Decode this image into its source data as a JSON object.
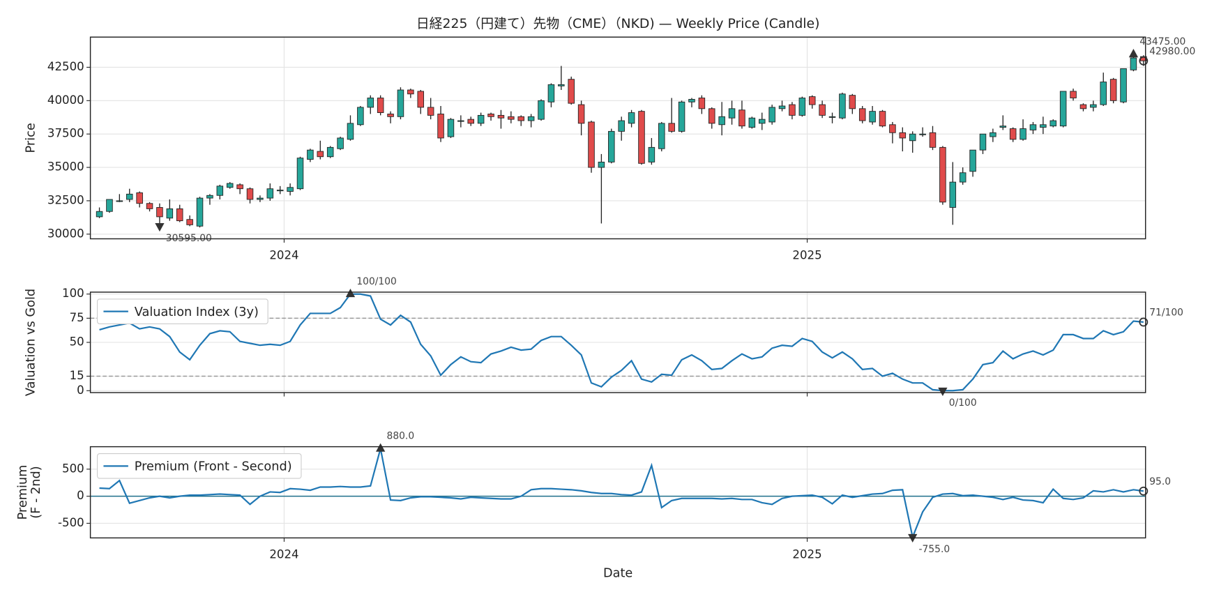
{
  "chart_data": [
    {
      "type": "candlestick",
      "title": "日経225（円建て）先物（CME）（NKD) — Weekly Price (Candle)",
      "ylabel": "Price",
      "xlim": [
        -0.9,
        104.2
      ],
      "xticks": [
        {
          "value": 18.4,
          "label": "2024"
        },
        {
          "value": 70.5,
          "label": "2025"
        }
      ],
      "ylim": [
        29650,
        44760
      ],
      "yticks": [
        30000,
        32500,
        35000,
        37500,
        40000,
        42500
      ],
      "grid": true,
      "up_color": "#26a69a",
      "down_color": "#e04b4b",
      "open": [
        31300,
        31700,
        32500,
        32600,
        33100,
        32300,
        32000,
        31200,
        31900,
        31100,
        30600,
        32700,
        32900,
        33500,
        33700,
        33400,
        32600,
        32700,
        33300,
        33200,
        33400,
        35600,
        36200,
        35800,
        36400,
        37100,
        38200,
        39500,
        40200,
        39000,
        38800,
        40800,
        40700,
        39500,
        39000,
        37300,
        38500,
        38600,
        38300,
        39000,
        38900,
        38800,
        38800,
        38500,
        38600,
        39900,
        41100,
        41600,
        39700,
        38400,
        35000,
        35400,
        37700,
        38300,
        39200,
        35400,
        36400,
        38300,
        37700,
        39900,
        40200,
        39400,
        38200,
        38700,
        39300,
        38000,
        38300,
        38400,
        39400,
        39700,
        38900,
        40300,
        39700,
        38800,
        38700,
        40400,
        39400,
        38400,
        39200,
        38200,
        37600,
        37000,
        37500,
        37600,
        36500,
        32000,
        33900,
        34700,
        36300,
        37300,
        38000,
        37900,
        37100,
        37800,
        38000,
        38100,
        38100,
        40700,
        39700,
        39500,
        39700,
        41600,
        39900,
        42300,
        43300
      ],
      "high": [
        32000,
        32600,
        33000,
        33400,
        33200,
        32400,
        32300,
        32600,
        32200,
        31400,
        32800,
        33000,
        33700,
        33900,
        33800,
        33500,
        32900,
        33800,
        33600,
        33800,
        35800,
        36400,
        37000,
        36600,
        37300,
        38900,
        39600,
        40400,
        40400,
        39200,
        41000,
        40900,
        40800,
        40200,
        39600,
        38700,
        38900,
        38800,
        39100,
        39100,
        39300,
        39200,
        38900,
        39000,
        40100,
        41300,
        42600,
        41800,
        40000,
        38500,
        36000,
        37900,
        38800,
        39300,
        39300,
        37200,
        38400,
        40200,
        40000,
        40200,
        40400,
        39500,
        39900,
        40000,
        40000,
        38800,
        39100,
        39700,
        40000,
        39900,
        40300,
        40400,
        40000,
        39100,
        40600,
        40500,
        39600,
        39600,
        39300,
        38400,
        38000,
        37700,
        38000,
        38100,
        36600,
        35400,
        35000,
        36300,
        37500,
        37900,
        38900,
        38000,
        38600,
        38400,
        38800,
        38600,
        40700,
        40900,
        39800,
        40000,
        42100,
        41700,
        42400,
        43475,
        43400
      ],
      "low": [
        31200,
        31600,
        32400,
        32400,
        32000,
        31700,
        30300,
        31000,
        30900,
        30595,
        30500,
        32200,
        32600,
        33400,
        33000,
        32300,
        32400,
        32500,
        33000,
        32900,
        33300,
        35400,
        35600,
        35700,
        36300,
        37000,
        38100,
        39000,
        38900,
        38300,
        38600,
        40200,
        39000,
        38600,
        36900,
        37200,
        38000,
        38100,
        38100,
        38500,
        37900,
        38300,
        38100,
        38000,
        38500,
        39500,
        40800,
        39700,
        37400,
        34600,
        30800,
        35300,
        37000,
        38000,
        35200,
        35200,
        36200,
        37600,
        37600,
        39500,
        39000,
        37900,
        37400,
        38200,
        37900,
        37900,
        37800,
        38200,
        39200,
        38600,
        38800,
        39400,
        38700,
        38300,
        38600,
        39000,
        38300,
        38200,
        38000,
        36800,
        36200,
        36100,
        37300,
        36300,
        32200,
        30700,
        33700,
        34300,
        36000,
        36900,
        37800,
        36900,
        37000,
        37500,
        37500,
        38000,
        38000,
        40000,
        39200,
        39200,
        39600,
        39800,
        39800,
        42200,
        42600
      ],
      "close": [
        31700,
        32600,
        32500,
        33000,
        32300,
        31900,
        31300,
        31900,
        31000,
        30700,
        32700,
        32900,
        33600,
        33800,
        33400,
        32600,
        32700,
        33400,
        33300,
        33500,
        35700,
        36300,
        35800,
        36500,
        37200,
        38300,
        39500,
        40200,
        39100,
        38800,
        40800,
        40500,
        39500,
        38900,
        37200,
        38600,
        38500,
        38300,
        38900,
        38800,
        38700,
        38600,
        38500,
        38800,
        40000,
        41200,
        41200,
        39800,
        38300,
        35000,
        35400,
        37700,
        38500,
        39100,
        35300,
        36500,
        38300,
        37700,
        39900,
        40100,
        39400,
        38300,
        38800,
        39400,
        38100,
        38700,
        38600,
        39500,
        39600,
        38900,
        40200,
        39700,
        38900,
        38800,
        40500,
        39400,
        38500,
        39200,
        38100,
        37600,
        37200,
        37500,
        37500,
        36500,
        32400,
        33900,
        34600,
        36300,
        37500,
        37600,
        38100,
        37100,
        37900,
        38200,
        38200,
        38500,
        40700,
        40200,
        39400,
        39700,
        41400,
        40000,
        42400,
        43200,
        42980
      ],
      "annotations": [
        {
          "kind": "max",
          "value": 43475,
          "label": "43475.00"
        },
        {
          "kind": "last",
          "value": 42980,
          "label": "42980.00"
        },
        {
          "kind": "min",
          "value": 30595,
          "label": "30595.00"
        }
      ],
      "annotation_color": "#333333"
    },
    {
      "type": "line",
      "ylabel": "Valuation vs Gold",
      "xlim": [
        -0.9,
        104.2
      ],
      "xticks": [
        18.4,
        70.5
      ],
      "ylim": [
        -2,
        102
      ],
      "yticks": [
        0,
        15,
        50,
        75,
        100
      ],
      "grid": true,
      "reference_lines": [
        75,
        15
      ],
      "series": [
        {
          "name": "Valuation Index (3y)",
          "color": "#1f77b4",
          "values": [
            63,
            66,
            68,
            70,
            64,
            66,
            64,
            56,
            40,
            32,
            47,
            59,
            62,
            61,
            51,
            49,
            47,
            48,
            47,
            51,
            68,
            80,
            80,
            80,
            86,
            100,
            100,
            98,
            74,
            68,
            78,
            71,
            48,
            36,
            16,
            27,
            35,
            30,
            29,
            38,
            41,
            45,
            42,
            43,
            52,
            56,
            56,
            47,
            37,
            8,
            4,
            14,
            21,
            31,
            12,
            9,
            17,
            16,
            32,
            37,
            31,
            22,
            23,
            31,
            38,
            33,
            35,
            44,
            47,
            46,
            54,
            51,
            40,
            34,
            40,
            33,
            22,
            23,
            15,
            18,
            12,
            8,
            8,
            1,
            0,
            0,
            1,
            12,
            27,
            29,
            41,
            33,
            38,
            41,
            37,
            42,
            58,
            58,
            54,
            54,
            62,
            58,
            61,
            72,
            71
          ]
        }
      ],
      "legend": "upper left",
      "annotations": [
        {
          "kind": "max",
          "value": 100,
          "label": "100/100"
        },
        {
          "kind": "min",
          "value": 0,
          "label": "0/100"
        },
        {
          "kind": "last",
          "value": 71,
          "label": "71/100"
        }
      ],
      "annotation_color": "#333333"
    },
    {
      "type": "line",
      "ylabel": [
        "Premium",
        "(F - 2nd)"
      ],
      "xlabel": "Date",
      "xlim": [
        -0.9,
        104.2
      ],
      "xticks": [
        {
          "value": 18.4,
          "label": "2024"
        },
        {
          "value": 70.5,
          "label": "2025"
        }
      ],
      "ylim": [
        -770,
        915
      ],
      "yticks": [
        -500,
        0,
        500
      ],
      "grid": true,
      "hline": 0,
      "hline_color": "#1f6f8b",
      "series": [
        {
          "name": "Premium (Front - Second)",
          "color": "#1f77b4",
          "values": [
            150,
            140,
            290,
            -130,
            -80,
            -30,
            0,
            -30,
            0,
            20,
            20,
            30,
            40,
            30,
            20,
            -150,
            0,
            80,
            70,
            140,
            130,
            110,
            170,
            170,
            180,
            170,
            170,
            190,
            880,
            -70,
            -80,
            -30,
            -10,
            -10,
            -20,
            -30,
            -50,
            -20,
            -30,
            -40,
            -50,
            -50,
            0,
            120,
            140,
            140,
            130,
            120,
            100,
            70,
            50,
            50,
            30,
            20,
            80,
            570,
            -210,
            -80,
            -40,
            -40,
            -40,
            -40,
            -50,
            -40,
            -60,
            -60,
            -120,
            -150,
            -40,
            0,
            10,
            20,
            -20,
            -140,
            20,
            -20,
            10,
            40,
            50,
            110,
            120,
            -755,
            -290,
            -20,
            40,
            50,
            10,
            20,
            0,
            -20,
            -60,
            -20,
            -70,
            -80,
            -120,
            130,
            -40,
            -60,
            -30,
            100,
            80,
            120,
            80,
            120,
            95
          ]
        }
      ],
      "legend": "upper left",
      "annotations": [
        {
          "kind": "max",
          "value": 880,
          "label": "880.0"
        },
        {
          "kind": "min",
          "value": -755,
          "label": "-755.0"
        },
        {
          "kind": "last",
          "value": 95,
          "label": "95.0"
        }
      ],
      "annotation_color": "#333333"
    }
  ]
}
